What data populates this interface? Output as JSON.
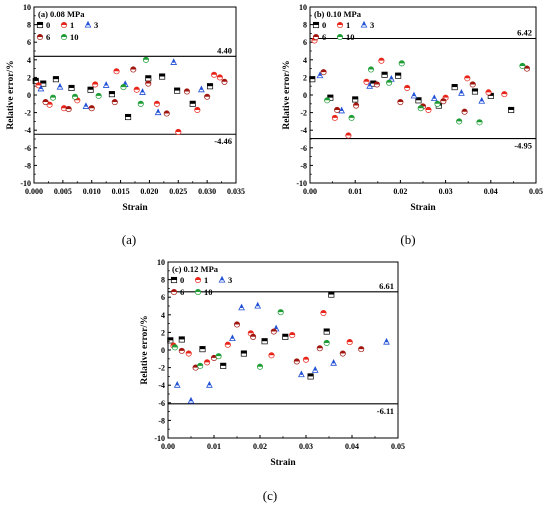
{
  "chart_data": [
    {
      "type": "scatter",
      "title": "(a) 0.08 MPa",
      "caption": "(a)",
      "xlabel": "Strain",
      "ylabel": "Relative error/%",
      "xlim": [
        0,
        0.035
      ],
      "ylim": [
        -10,
        10
      ],
      "xticks": [
        "0.000",
        "0.005",
        "0.010",
        "0.015",
        "0.020",
        "0.025",
        "0.030",
        "0.035"
      ],
      "yticks": [
        "-10",
        "-8",
        "-6",
        "-4",
        "-2",
        "0",
        "2",
        "4",
        "6",
        "8",
        "10"
      ],
      "ref_lines": [
        {
          "value": 4.4,
          "label": "4.40"
        },
        {
          "value": -4.46,
          "label": "-4.46"
        }
      ],
      "series": [
        {
          "name": "0",
          "color": "#000000",
          "marker": "square",
          "x": [
            0.0003,
            0.0016,
            0.0038,
            0.0065,
            0.0098,
            0.0135,
            0.0163,
            0.0198,
            0.0222,
            0.0248,
            0.0275,
            0.0305
          ],
          "y": [
            1.6,
            1.3,
            1.8,
            0.8,
            0.6,
            0.1,
            -2.5,
            1.9,
            2.1,
            0.5,
            -1.0,
            1.0
          ]
        },
        {
          "name": "1",
          "color": "#e8251a",
          "marker": "circle",
          "x": [
            0.0008,
            0.0027,
            0.0052,
            0.0075,
            0.0106,
            0.0143,
            0.0178,
            0.0213,
            0.025,
            0.0283,
            0.0312,
            0.0322
          ],
          "y": [
            1.1,
            -1.1,
            -1.5,
            -0.6,
            1.2,
            2.7,
            0.6,
            -1.0,
            -4.2,
            -1.7,
            2.3,
            2.0
          ]
        },
        {
          "name": "3",
          "color": "#1f4fd6",
          "marker": "triangle",
          "x": [
            0.0012,
            0.0045,
            0.009,
            0.0125,
            0.0158,
            0.0188,
            0.0215,
            0.0242,
            0.029
          ],
          "y": [
            0.7,
            0.9,
            -1.3,
            1.1,
            1.2,
            0.3,
            -2.0,
            3.7,
            0.6
          ]
        },
        {
          "name": "6",
          "color": "#a0160f",
          "marker": "circle-half",
          "x": [
            0.002,
            0.006,
            0.01,
            0.014,
            0.0172,
            0.0198,
            0.023,
            0.0265,
            0.03,
            0.033
          ],
          "y": [
            -0.8,
            -1.6,
            -1.5,
            -0.8,
            2.9,
            1.3,
            -2.1,
            0.4,
            -0.2,
            1.5
          ]
        },
        {
          "name": "10",
          "color": "#1e9c35",
          "marker": "circle-half",
          "x": [
            0.0033,
            0.0071,
            0.0112,
            0.0155,
            0.0185,
            0.0194
          ],
          "y": [
            -0.3,
            -0.2,
            -0.1,
            0.9,
            -1.0,
            4.0
          ]
        }
      ]
    },
    {
      "type": "scatter",
      "title": "(b) 0.10 MPa",
      "caption": "(b)",
      "xlabel": "Strain",
      "ylabel": "Relative error/%",
      "xlim": [
        0,
        0.05
      ],
      "ylim": [
        -10,
        10
      ],
      "xticks": [
        "0.00",
        "0.01",
        "0.02",
        "0.03",
        "0.04",
        "0.05"
      ],
      "yticks": [
        "-10",
        "-8",
        "-6",
        "-4",
        "-2",
        "0",
        "2",
        "4",
        "6",
        "8",
        "10"
      ],
      "ref_lines": [
        {
          "value": 6.42,
          "label": "6.42"
        },
        {
          "value": -4.95,
          "label": "-4.95"
        }
      ],
      "series": [
        {
          "name": "0",
          "color": "#000000",
          "marker": "square",
          "x": [
            0.0005,
            0.0045,
            0.01,
            0.014,
            0.0165,
            0.0195,
            0.024,
            0.0285,
            0.032,
            0.0365,
            0.04,
            0.0445
          ],
          "y": [
            1.8,
            -0.3,
            -0.5,
            1.3,
            2.3,
            2.2,
            -0.6,
            -1.2,
            0.9,
            0.4,
            -0.1,
            -1.7
          ]
        },
        {
          "name": "1",
          "color": "#e8251a",
          "marker": "circle",
          "x": [
            0.001,
            0.0055,
            0.0085,
            0.0125,
            0.0158,
            0.0215,
            0.0262,
            0.03,
            0.0348,
            0.0395,
            0.043
          ],
          "y": [
            6.2,
            -2.6,
            -4.6,
            1.5,
            3.9,
            0.8,
            -1.7,
            -0.3,
            1.9,
            0.3,
            0.1
          ]
        },
        {
          "name": "3",
          "color": "#1f4fd6",
          "marker": "triangle",
          "x": [
            0.0022,
            0.007,
            0.0132,
            0.018,
            0.023,
            0.0275,
            0.0335,
            0.038
          ],
          "y": [
            2.2,
            -1.8,
            1.0,
            1.8,
            -0.1,
            -0.4,
            0.2,
            -0.7
          ]
        },
        {
          "name": "6",
          "color": "#a0160f",
          "marker": "circle-half",
          "x": [
            0.003,
            0.006,
            0.0102,
            0.0148,
            0.02,
            0.025,
            0.0295,
            0.0342,
            0.036,
            0.048
          ],
          "y": [
            2.6,
            -1.7,
            -1.2,
            1.2,
            -0.8,
            -1.3,
            -0.7,
            -1.9,
            1.2,
            3.0
          ]
        },
        {
          "name": "10",
          "color": "#1e9c35",
          "marker": "circle-half",
          "x": [
            0.0038,
            0.0092,
            0.0135,
            0.0175,
            0.0203,
            0.0245,
            0.0282,
            0.033,
            0.0375,
            0.047
          ],
          "y": [
            -0.6,
            -2.6,
            2.9,
            1.4,
            3.6,
            -1.5,
            -1.0,
            -3.0,
            -3.1,
            3.3
          ]
        }
      ]
    },
    {
      "type": "scatter",
      "title": "(c) 0.12 MPa",
      "caption": "(c)",
      "xlabel": "Strain",
      "ylabel": "Relative error/%",
      "xlim": [
        0,
        0.05
      ],
      "ylim": [
        -10,
        10
      ],
      "xticks": [
        "0.00",
        "0.01",
        "0.02",
        "0.03",
        "0.04",
        "0.05"
      ],
      "yticks": [
        "-10",
        "-8",
        "-6",
        "-4",
        "-2",
        "0",
        "2",
        "4",
        "6",
        "8",
        "10"
      ],
      "ref_lines": [
        {
          "value": 6.61,
          "label": "6.61"
        },
        {
          "value": -6.11,
          "label": "-6.11"
        }
      ],
      "series": [
        {
          "name": "0",
          "color": "#000000",
          "marker": "square",
          "x": [
            0.0005,
            0.003,
            0.0075,
            0.012,
            0.0165,
            0.021,
            0.0255,
            0.031,
            0.0345,
            0.0355
          ],
          "y": [
            1.1,
            1.2,
            0.1,
            -1.8,
            -0.4,
            1.0,
            1.5,
            -3.0,
            2.1,
            6.3
          ]
        },
        {
          "name": "1",
          "color": "#e8251a",
          "marker": "circle",
          "x": [
            0.0012,
            0.0045,
            0.0085,
            0.013,
            0.018,
            0.0225,
            0.027,
            0.03,
            0.0338,
            0.0395
          ],
          "y": [
            0.5,
            -0.4,
            -1.4,
            0.6,
            1.9,
            -0.6,
            1.7,
            -1.1,
            4.2,
            0.9
          ]
        },
        {
          "name": "3",
          "color": "#1f4fd6",
          "marker": "triangle",
          "x": [
            0.002,
            0.005,
            0.009,
            0.014,
            0.016,
            0.0195,
            0.0235,
            0.029,
            0.032,
            0.036,
            0.0475
          ],
          "y": [
            -4.0,
            -5.8,
            -4.0,
            1.3,
            4.8,
            5.0,
            2.4,
            -2.8,
            -2.3,
            -1.5,
            0.9
          ]
        },
        {
          "name": "6",
          "color": "#a0160f",
          "marker": "circle-half",
          "x": [
            0.003,
            0.006,
            0.01,
            0.015,
            0.0185,
            0.023,
            0.028,
            0.033,
            0.038,
            0.042
          ],
          "y": [
            -0.1,
            -2.0,
            -0.9,
            2.9,
            1.5,
            2.1,
            -1.3,
            0.2,
            -0.4,
            0.1
          ]
        },
        {
          "name": "10",
          "color": "#1e9c35",
          "marker": "circle-half",
          "x": [
            0.0015,
            0.007,
            0.011,
            0.02,
            0.0245,
            0.0345
          ],
          "y": [
            0.3,
            -1.8,
            -0.7,
            -1.9,
            4.3,
            0.8
          ]
        }
      ]
    }
  ]
}
